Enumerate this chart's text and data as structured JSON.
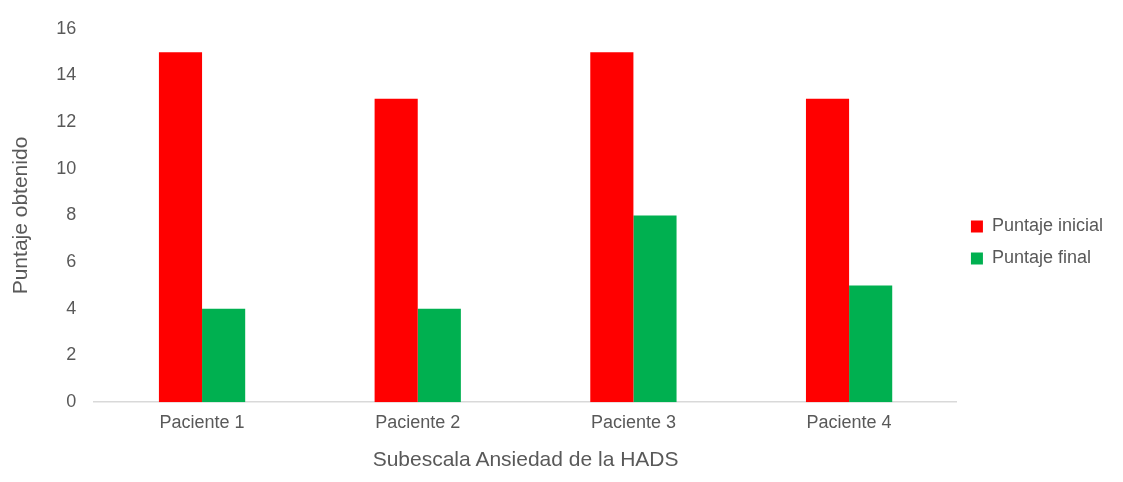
{
  "chart_data": {
    "type": "bar",
    "xlabel": "Subescala Ansiedad de la HADS",
    "ylabel": "Puntaje obtenido",
    "categories": [
      "Paciente 1",
      "Paciente 2",
      "Paciente 3",
      "Paciente 4"
    ],
    "series": [
      {
        "name": "Puntaje inicial",
        "color": "#ff0000",
        "values": [
          15,
          13,
          15,
          13
        ]
      },
      {
        "name": "Puntaje final",
        "color": "#00b050",
        "values": [
          4,
          4,
          8,
          5
        ]
      }
    ],
    "ylim": [
      0,
      16
    ],
    "yticks": [
      0,
      2,
      4,
      6,
      8,
      10,
      12,
      14,
      16
    ],
    "grid": false,
    "legend": "right"
  }
}
